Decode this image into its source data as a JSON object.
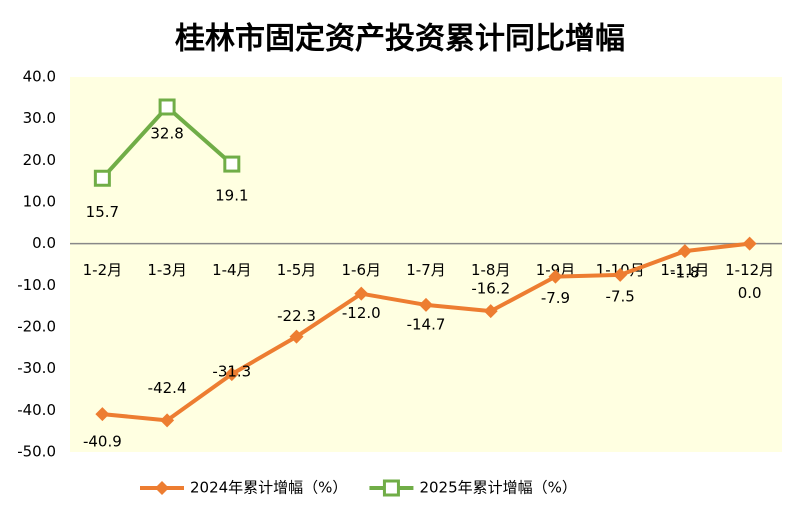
{
  "chart_data": {
    "type": "line",
    "title": "桂林市固定资产投资累计同比增幅",
    "categories": [
      "1-2月",
      "1-3月",
      "1-4月",
      "1-5月",
      "1-6月",
      "1-7月",
      "1-8月",
      "1-9月",
      "1-10月",
      "1-11月",
      "1-12月"
    ],
    "series": [
      {
        "name": "2024年累计增幅（%）",
        "color": "#ED7D31",
        "marker": "diamond",
        "values": [
          -40.9,
          -42.4,
          -31.3,
          -22.3,
          -12,
          -14.7,
          -16.2,
          -7.9,
          -7.5,
          -1.8,
          0
        ],
        "value_labels": [
          "-40.9",
          "-42.4",
          "-31.3",
          "-22.3",
          "-12.0",
          "-14.7",
          "-16.2",
          "-7.9",
          "-7.5",
          "-1.8",
          "0.0"
        ]
      },
      {
        "name": "2025年累计增幅（%）",
        "color": "#70AD47",
        "marker": "square",
        "values": [
          15.7,
          32.8,
          19.1,
          null,
          null,
          null,
          null,
          null,
          null,
          null,
          null
        ],
        "value_labels": [
          "15.7",
          "32.8",
          "19.1",
          null,
          null,
          null,
          null,
          null,
          null,
          null,
          null
        ]
      }
    ],
    "ylim": [
      -50,
      40
    ],
    "yticks": [
      {
        "value": 40,
        "label": "40.0"
      },
      {
        "value": 30,
        "label": "30.0"
      },
      {
        "value": 20,
        "label": "20.0"
      },
      {
        "value": 10,
        "label": "10.0"
      },
      {
        "value": 0,
        "label": "0.0"
      },
      {
        "value": -10,
        "label": "-10.0"
      },
      {
        "value": -20,
        "label": "-20.0"
      },
      {
        "value": -30,
        "label": "-30.0"
      },
      {
        "value": -40,
        "label": "-40.0"
      },
      {
        "value": -50,
        "label": "-50.0"
      }
    ],
    "legend": "bottom"
  }
}
